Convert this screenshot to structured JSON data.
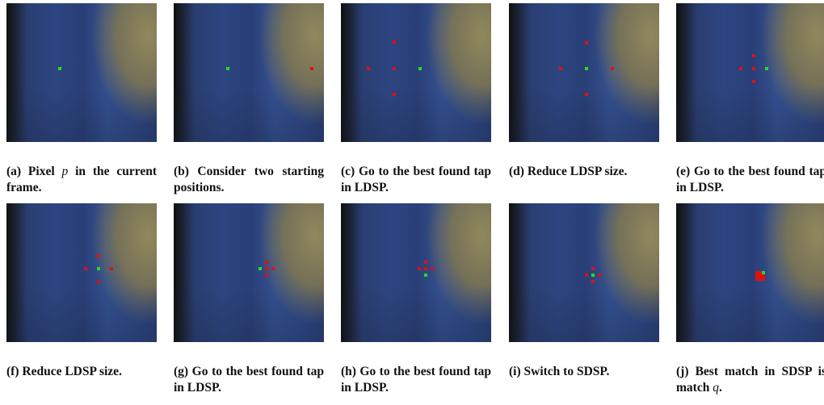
{
  "panels": [
    {
      "label": "(a)",
      "caption": [
        "Pixel",
        "p",
        "in the current frame."
      ]
    },
    {
      "label": "(b)",
      "caption": [
        "Consider two starting positions."
      ]
    },
    {
      "label": "(c)",
      "caption": [
        "Go to the best found tap in LDSP."
      ]
    },
    {
      "label": "(d)",
      "caption": [
        "Reduce LDSP size."
      ]
    },
    {
      "label": "(e)",
      "caption": [
        "Go to the best found tap in LDSP."
      ]
    },
    {
      "label": "(f)",
      "caption": [
        "Reduce LDSP size."
      ]
    },
    {
      "label": "(g)",
      "caption": [
        "Go to the best found tap in LDSP."
      ]
    },
    {
      "label": "(h)",
      "caption": [
        "Go to the best found tap in LDSP."
      ]
    },
    {
      "label": "(i)",
      "caption": [
        "Switch to SDSP."
      ]
    },
    {
      "label": "(j)",
      "caption": [
        "Best match in SDSP is match",
        "q",
        "."
      ]
    }
  ]
}
